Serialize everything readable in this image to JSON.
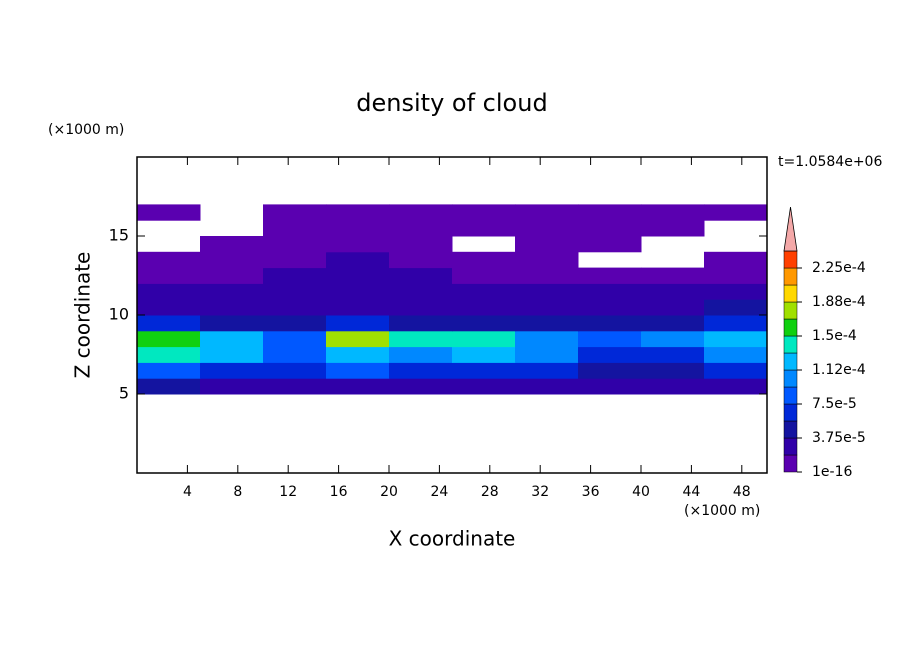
{
  "chart_data": {
    "type": "contour",
    "title": "density of cloud",
    "time_label": "t=1.0584e+06",
    "x_label": "X coordinate",
    "y_label": "Z coordinate",
    "x_unit": "(×1000 m)",
    "y_unit": "(×1000 m)",
    "xlim": [
      0,
      50
    ],
    "xticks": [
      4,
      8,
      12,
      16,
      20,
      24,
      28,
      32,
      36,
      40,
      44,
      48
    ],
    "ylim": [
      0,
      20
    ],
    "yticks": [
      5,
      10,
      15
    ],
    "x": [
      0,
      5,
      10,
      15,
      20,
      25,
      30,
      35,
      40,
      45,
      50
    ],
    "z": [
      5,
      6,
      7,
      8,
      9,
      10,
      11,
      12,
      13,
      14,
      15,
      16,
      17
    ],
    "values": [
      [
        4e-05,
        3e-05,
        3e-05,
        3e-05,
        3e-05,
        3e-05,
        3e-05,
        3e-05,
        3e-05,
        2e-05
      ],
      [
        8e-05,
        7e-05,
        6e-05,
        8e-05,
        7e-05,
        7e-05,
        7e-05,
        5e-05,
        5e-05,
        6e-05
      ],
      [
        0.00014,
        0.00012,
        8e-05,
        0.00013,
        0.00011,
        0.00013,
        0.0001,
        7e-05,
        6e-05,
        0.00011
      ],
      [
        0.00016,
        0.00012,
        9e-05,
        0.00017,
        0.00014,
        0.00014,
        0.0001,
        8e-05,
        0.0001,
        0.00012
      ],
      [
        6e-05,
        5e-05,
        5e-05,
        6e-05,
        5e-05,
        5e-05,
        5e-05,
        5e-05,
        5e-05,
        6e-05
      ],
      [
        3e-05,
        3e-05,
        3e-05,
        3e-05,
        3e-05,
        3e-05,
        3e-05,
        3e-05,
        3e-05,
        4e-05
      ],
      [
        2e-05,
        2e-05,
        2e-05,
        2e-05,
        2e-05,
        2e-05,
        2e-05,
        2e-05,
        2e-05,
        2e-05
      ],
      [
        1e-05,
        1e-05,
        2e-05,
        3e-05,
        2e-05,
        1e-05,
        1e-05,
        1e-05,
        1e-05,
        1e-05
      ],
      [
        1e-05,
        1e-05,
        1e-05,
        2e-05,
        1e-05,
        1e-05,
        1e-05,
        null,
        null,
        1e-05
      ],
      [
        null,
        1e-05,
        1e-05,
        1e-05,
        1e-05,
        null,
        1e-05,
        1e-05,
        null,
        null
      ],
      [
        null,
        null,
        1e-05,
        1e-05,
        1e-05,
        1e-05,
        1e-05,
        1e-05,
        1e-05,
        null
      ],
      [
        5e-06,
        null,
        5e-06,
        5e-06,
        5e-06,
        5e-06,
        5e-06,
        5e-06,
        5e-06,
        5e-06
      ]
    ],
    "levels": [
      1e-16,
      1.875e-05,
      3.75e-05,
      5.625e-05,
      7.5e-05,
      9.375e-05,
      0.0001125,
      0.00013125,
      0.00015,
      0.00016875,
      0.0001875,
      0.00020625,
      0.000225,
      0.00024375
    ],
    "colors": [
      "#5a00b0",
      "#3000a8",
      "#1414a0",
      "#0028d8",
      "#0058ff",
      "#0088ff",
      "#00b8ff",
      "#00e8c0",
      "#10d010",
      "#a0e000",
      "#ffd800",
      "#ff9800",
      "#ff4000"
    ],
    "over_color": "#f4a8a8",
    "colorbar_ticks": [
      1e-16,
      {
        "value": 3.75e-05,
        "label": "3.75e-5"
      },
      {
        "value": 7.5e-05,
        "label": "7.5e-5"
      },
      {
        "value": 0.0001125,
        "label": "1.12e-4"
      },
      {
        "value": 0.00015,
        "label": "1.5e-4"
      },
      {
        "value": 0.0001875,
        "label": "1.88e-4"
      },
      {
        "value": 0.000225,
        "label": "2.25e-4"
      }
    ]
  }
}
